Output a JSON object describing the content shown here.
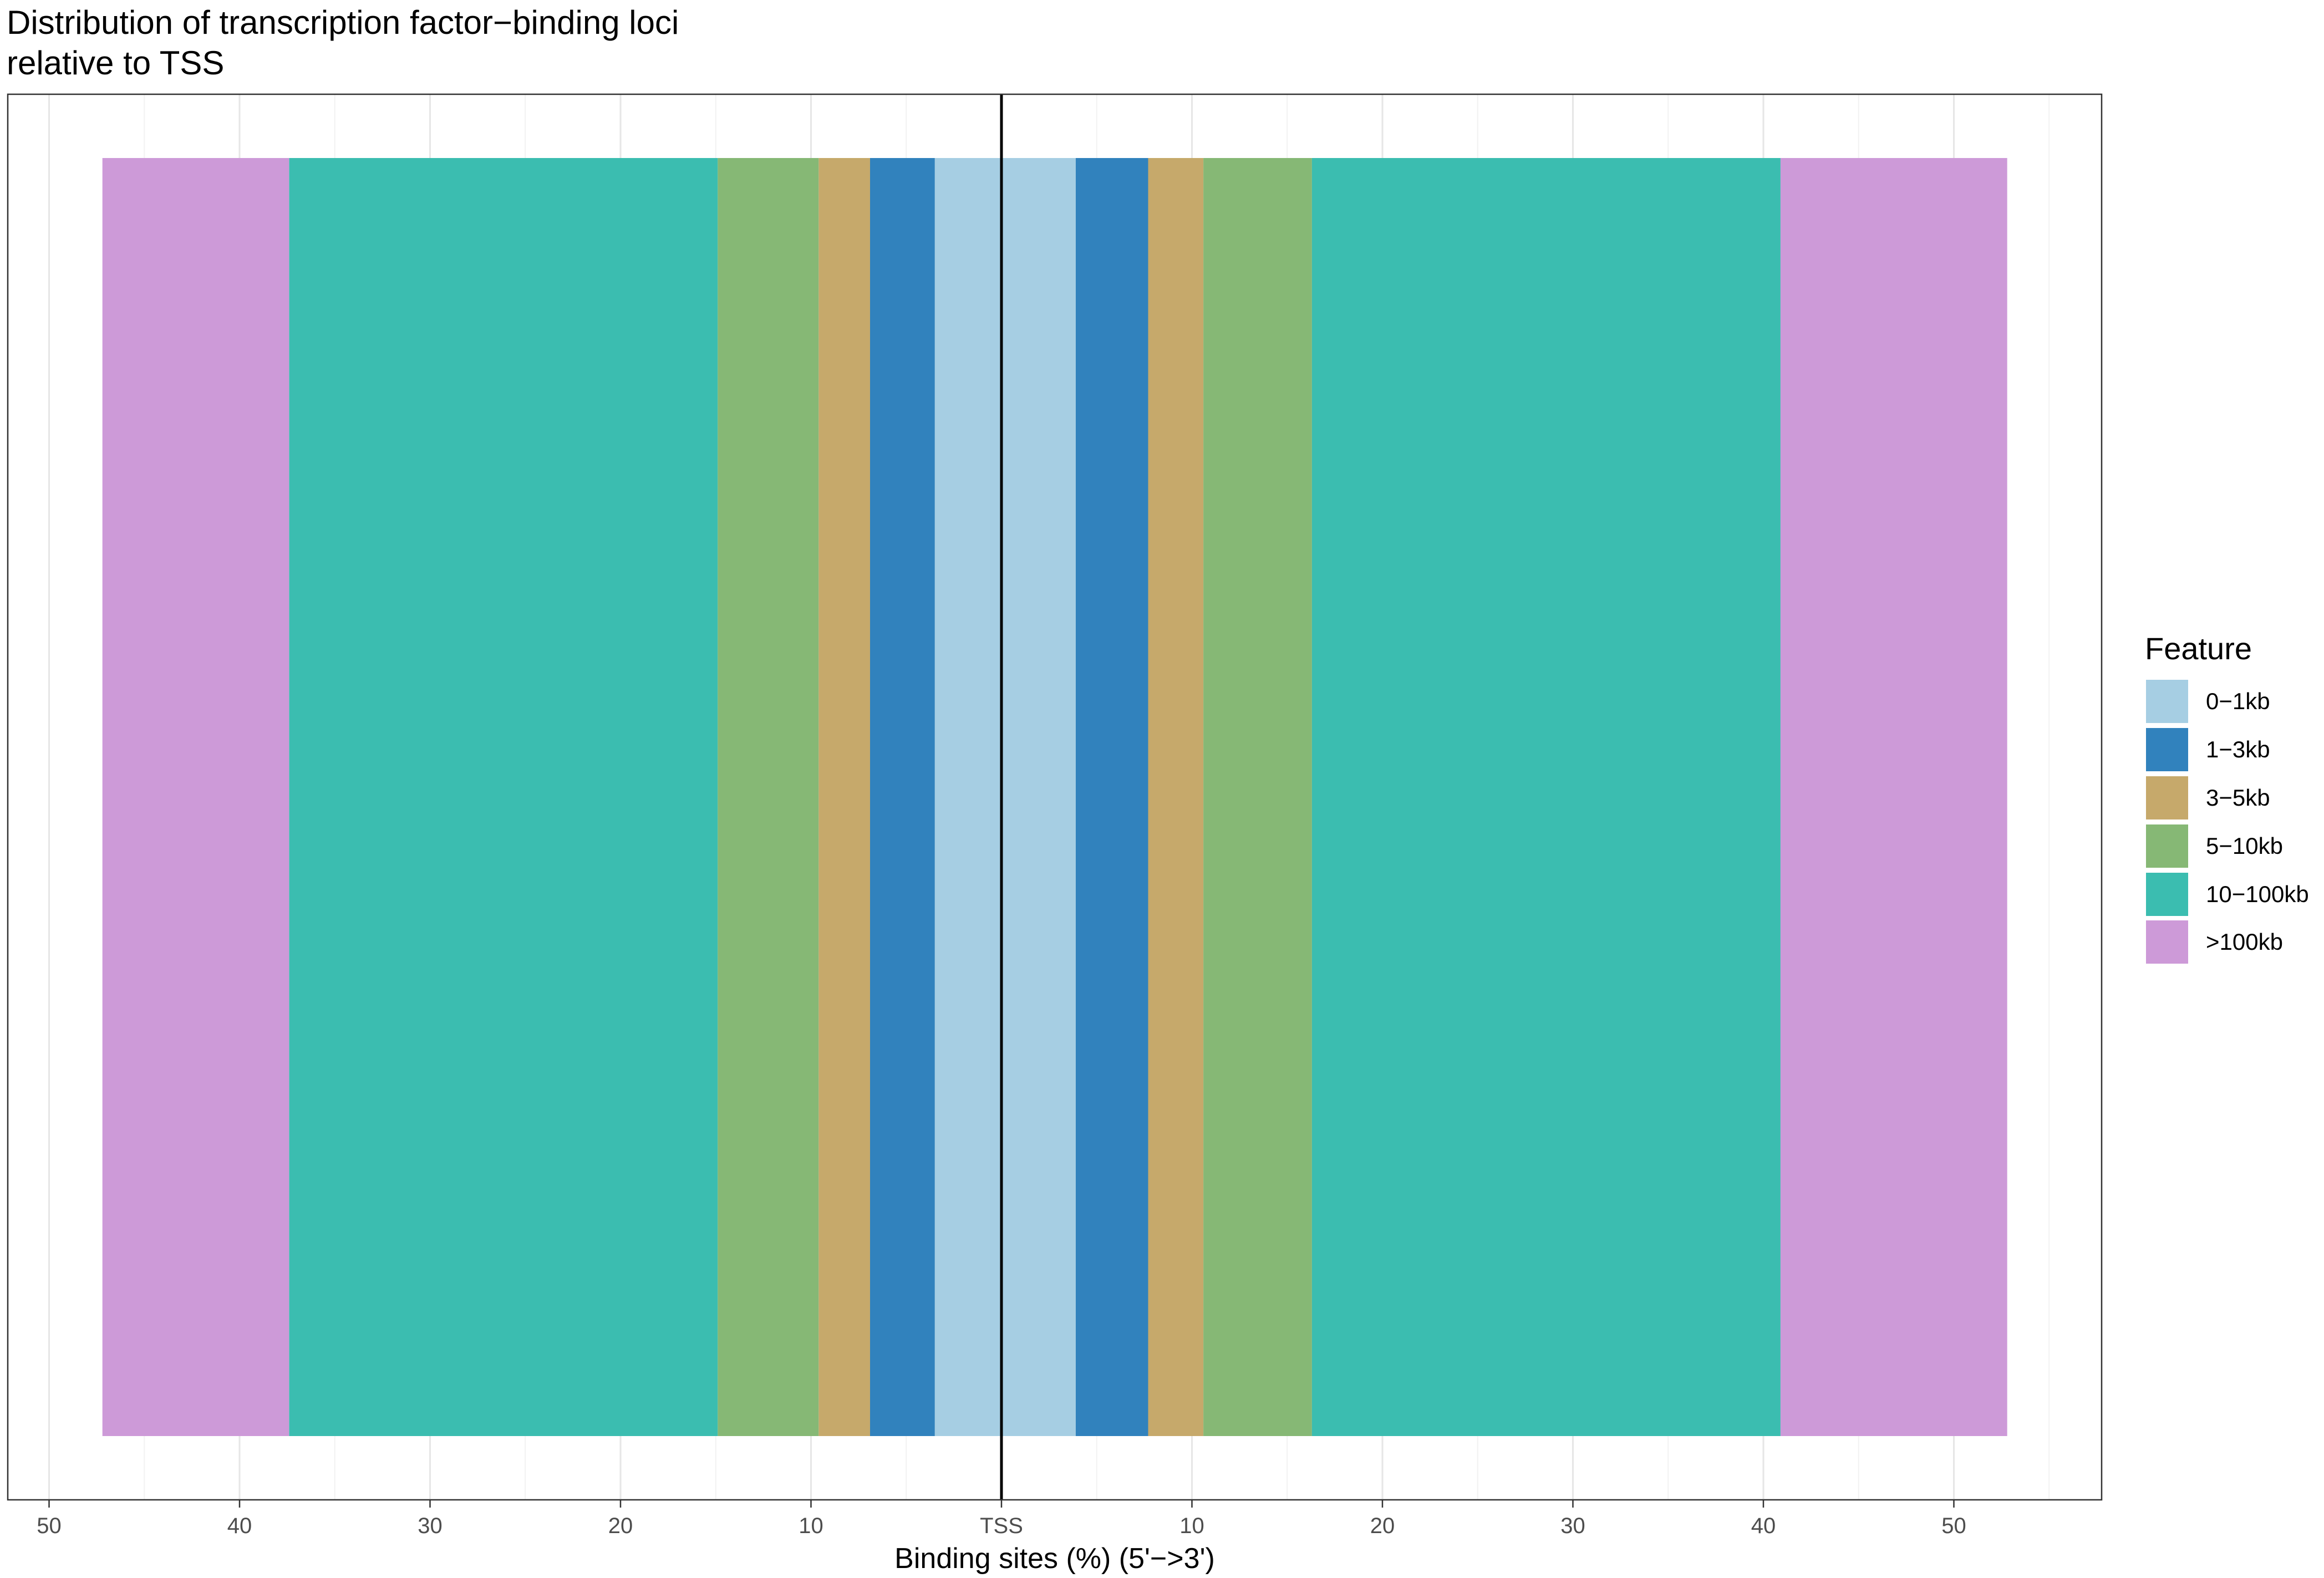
{
  "chart_data": {
    "type": "bar",
    "orientation": "horizontal",
    "stacking": "diverging",
    "title": "Distribution of transcription factor−binding loci\nrelative to TSS",
    "xlabel": "Binding sites (%) (5'−>3')",
    "ylabel": "",
    "xlim": [
      -50,
      50
    ],
    "x_ticks": [
      -50,
      -40,
      -30,
      -20,
      -10,
      0,
      10,
      20,
      30,
      40,
      50
    ],
    "x_tick_labels": [
      "50",
      "40",
      "30",
      "20",
      "10",
      "TSS",
      "10",
      "20",
      "30",
      "40",
      "50"
    ],
    "grid": true,
    "legend_position": "right",
    "legend_title": "Feature",
    "series": [
      {
        "name": "0−1kb",
        "color": "#A6CEE3",
        "upstream": 3.5,
        "downstream": 3.9
      },
      {
        "name": "1−3kb",
        "color": "#3182BD",
        "upstream": 3.4,
        "downstream": 3.8
      },
      {
        "name": "3−5kb",
        "color": "#C6A96B",
        "upstream": 2.7,
        "downstream": 2.9
      },
      {
        "name": "5−10kb",
        "color": "#86B875",
        "upstream": 5.3,
        "downstream": 5.7
      },
      {
        "name": "10−100kb",
        "color": "#3BBDB0",
        "upstream": 22.5,
        "downstream": 24.6
      },
      {
        "name": ">100kb",
        "color": "#CD9AD8",
        "upstream": 9.8,
        "downstream": 11.9
      }
    ]
  }
}
